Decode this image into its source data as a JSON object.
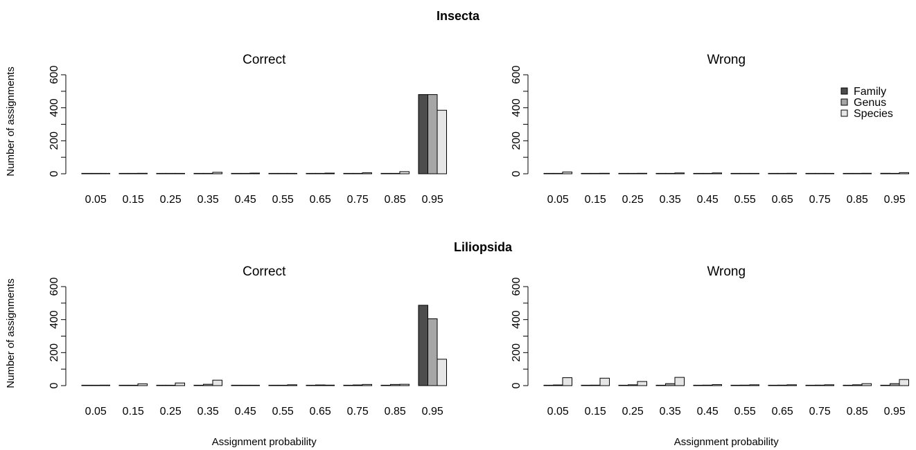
{
  "colors": {
    "Family": "#4d4d4d",
    "Genus": "#a6a6a6",
    "Species": "#e6e6e6"
  },
  "chart_data": [
    {
      "type": "bar",
      "group": "Insecta",
      "title": "Correct",
      "xlabel": "",
      "ylabel": "Number of assignments",
      "ylim": [
        0,
        600
      ],
      "yticks": [
        0,
        200,
        400,
        600
      ],
      "categories": [
        "0.05",
        "0.15",
        "0.25",
        "0.35",
        "0.45",
        "0.55",
        "0.65",
        "0.75",
        "0.85",
        "0.95"
      ],
      "legend": null,
      "series": [
        {
          "name": "Family",
          "values": [
            0,
            0,
            0,
            0,
            0,
            0,
            0,
            0,
            0,
            480
          ]
        },
        {
          "name": "Genus",
          "values": [
            0,
            1,
            1,
            2,
            1,
            1,
            1,
            1,
            2,
            480
          ]
        },
        {
          "name": "Species",
          "values": [
            1,
            3,
            2,
            9,
            4,
            2,
            4,
            6,
            13,
            385
          ]
        }
      ]
    },
    {
      "type": "bar",
      "group": "Insecta",
      "title": "Wrong",
      "xlabel": "",
      "ylabel": "",
      "ylim": [
        0,
        600
      ],
      "yticks": [
        0,
        200,
        400,
        600
      ],
      "categories": [
        "0.05",
        "0.15",
        "0.25",
        "0.35",
        "0.45",
        "0.55",
        "0.65",
        "0.75",
        "0.85",
        "0.95"
      ],
      "legend": "top-right",
      "series": [
        {
          "name": "Family",
          "values": [
            0,
            1,
            0,
            0,
            0,
            0,
            0,
            0,
            0,
            3
          ]
        },
        {
          "name": "Genus",
          "values": [
            1,
            1,
            1,
            1,
            1,
            0,
            1,
            1,
            1,
            2
          ]
        },
        {
          "name": "Species",
          "values": [
            11,
            3,
            3,
            5,
            5,
            2,
            3,
            2,
            3,
            7
          ]
        }
      ]
    },
    {
      "type": "bar",
      "group": "Liliopsida",
      "title": "Correct",
      "xlabel": "Assignment probability",
      "ylabel": "Number of assignments",
      "ylim": [
        0,
        600
      ],
      "yticks": [
        0,
        200,
        400,
        600
      ],
      "categories": [
        "0.05",
        "0.15",
        "0.25",
        "0.35",
        "0.45",
        "0.55",
        "0.65",
        "0.75",
        "0.85",
        "0.95"
      ],
      "legend": null,
      "series": [
        {
          "name": "Family",
          "values": [
            0,
            0,
            0,
            1,
            0,
            0,
            0,
            0,
            1,
            487
          ]
        },
        {
          "name": "Genus",
          "values": [
            1,
            2,
            2,
            8,
            1,
            2,
            4,
            4,
            7,
            405
          ]
        },
        {
          "name": "Species",
          "values": [
            3,
            11,
            16,
            33,
            2,
            5,
            3,
            7,
            8,
            160
          ]
        }
      ]
    },
    {
      "type": "bar",
      "group": "Liliopsida",
      "title": "Wrong",
      "xlabel": "Assignment probability",
      "ylabel": "",
      "ylim": [
        0,
        600
      ],
      "yticks": [
        0,
        200,
        400,
        600
      ],
      "categories": [
        "0.05",
        "0.15",
        "0.25",
        "0.35",
        "0.45",
        "0.55",
        "0.65",
        "0.75",
        "0.85",
        "0.95"
      ],
      "legend": null,
      "series": [
        {
          "name": "Family",
          "values": [
            0,
            0,
            1,
            1,
            0,
            0,
            0,
            0,
            1,
            1
          ]
        },
        {
          "name": "Genus",
          "values": [
            4,
            3,
            5,
            12,
            3,
            3,
            3,
            3,
            5,
            12
          ]
        },
        {
          "name": "Species",
          "values": [
            48,
            45,
            25,
            50,
            6,
            5,
            5,
            5,
            12,
            37
          ]
        }
      ]
    }
  ],
  "row_titles": [
    "Insecta",
    "Liliopsida"
  ]
}
